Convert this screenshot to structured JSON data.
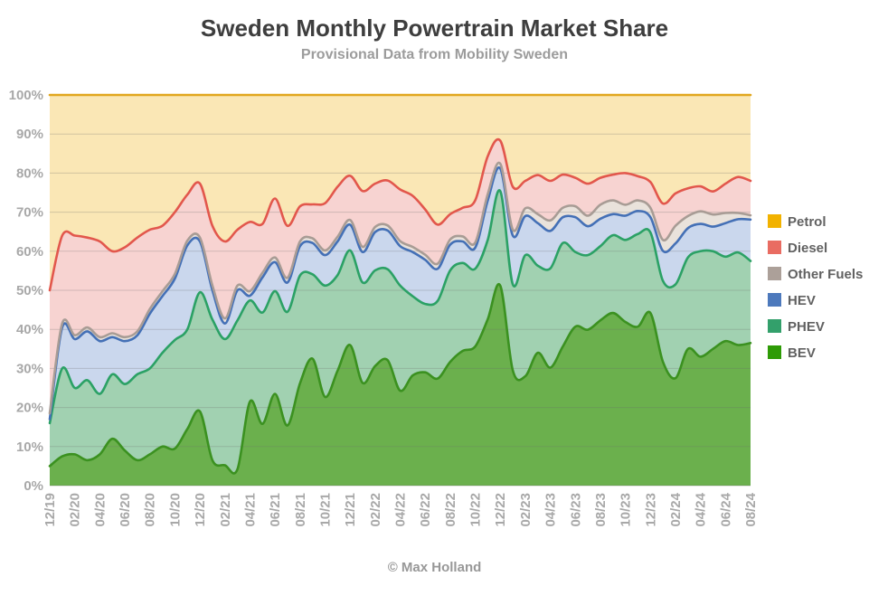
{
  "header": {
    "title": "Sweden Monthly Powertrain Market Share",
    "subtitle": "Provisional Data from Mobility Sweden"
  },
  "footer": {
    "credit": "© Max Holland"
  },
  "chart_data": {
    "type": "area",
    "stacked": true,
    "unit": "percent",
    "title": "Sweden Monthly Powertrain Market Share",
    "subtitle": "Provisional Data from Mobility Sweden",
    "ylim": [
      0,
      100
    ],
    "grid": "horizontal",
    "legend_position": "right",
    "y_ticks": [
      "0%",
      "10%",
      "20%",
      "30%",
      "40%",
      "50%",
      "60%",
      "70%",
      "80%",
      "90%",
      "100%"
    ],
    "x_tick_every": 2,
    "x_labels": [
      "12/19",
      "01/20",
      "02/20",
      "03/20",
      "04/20",
      "05/20",
      "06/20",
      "07/20",
      "08/20",
      "09/20",
      "10/20",
      "11/20",
      "12/20",
      "01/21",
      "02/21",
      "03/21",
      "04/21",
      "05/21",
      "06/21",
      "07/21",
      "08/21",
      "09/21",
      "10/21",
      "11/21",
      "12/21",
      "01/22",
      "02/22",
      "03/22",
      "04/22",
      "05/22",
      "06/22",
      "07/22",
      "08/22",
      "09/22",
      "10/22",
      "11/22",
      "12/22",
      "01/23",
      "02/23",
      "03/23",
      "04/23",
      "05/23",
      "06/23",
      "07/23",
      "08/23",
      "09/23",
      "10/23",
      "11/23",
      "12/23",
      "01/24",
      "02/24",
      "03/24",
      "04/24",
      "05/24",
      "06/24",
      "07/24",
      "08/24"
    ],
    "series": [
      {
        "name": "BEV",
        "line": "#3b9120",
        "fill": "#6bb04d",
        "legend": "#2e9b06",
        "values": [
          5,
          7.5,
          8,
          6.5,
          8,
          12,
          9,
          6.5,
          8,
          10,
          9.5,
          14.5,
          19,
          6.5,
          5.2,
          4.2,
          21.5,
          15.8,
          23.5,
          15.4,
          26.2,
          32.5,
          22.7,
          29.4,
          36,
          26.3,
          30.6,
          32.1,
          24.3,
          28.2,
          29,
          27.4,
          31.7,
          34.5,
          35.6,
          42.6,
          51.2,
          29.5,
          28,
          34,
          30.2,
          35.6,
          40.7,
          39.9,
          42.3,
          44.2,
          41.9,
          40.7,
          44.2,
          31.7,
          27.5,
          35,
          33,
          35,
          37,
          36,
          36.5
        ]
      },
      {
        "name": "PHEV",
        "line": "#2ba165",
        "fill": "#a1d1b1",
        "legend": "#33a06b",
        "values": [
          11,
          22.5,
          17,
          20.5,
          15.5,
          16.5,
          17,
          22,
          22,
          24,
          27.8,
          25.5,
          30.5,
          36,
          32.3,
          38.1,
          25.9,
          28.5,
          26.3,
          29.1,
          27.6,
          21.6,
          28.5,
          24.5,
          24.2,
          25.7,
          24.5,
          23.3,
          26.9,
          20.3,
          17.5,
          19.9,
          23.4,
          22.5,
          19.9,
          20.3,
          24.2,
          22,
          31,
          22.3,
          25.4,
          26.5,
          19.1,
          19.1,
          19,
          19.9,
          21,
          23.7,
          20.6,
          20.7,
          24,
          23.4,
          27,
          25,
          21.6,
          23.7,
          21
        ]
      },
      {
        "name": "HEV",
        "line": "#4470b6",
        "fill": "#cad7ed",
        "legend": "#4d79bc",
        "values": [
          1,
          10.5,
          12.5,
          12.5,
          13.5,
          9.5,
          11,
          10,
          14,
          14.5,
          15.7,
          21.5,
          13,
          7.5,
          4,
          7.7,
          1.2,
          9,
          7.4,
          7.5,
          7.5,
          8,
          7.8,
          8.6,
          6.6,
          7.8,
          9.8,
          9.9,
          10.1,
          11.3,
          11.3,
          8.2,
          6.6,
          5.5,
          5.4,
          10.1,
          5.8,
          12.5,
          10,
          10.9,
          9.6,
          6.6,
          8.9,
          7.4,
          7,
          5.4,
          6.2,
          5.9,
          3.9,
          7.7,
          10.5,
          7.5,
          7,
          6.3,
          8.6,
          8.5,
          10.6
        ]
      },
      {
        "name": "Other Fuels",
        "line": "#a89c95",
        "fill": "#e9e2db",
        "legend": "#aca099",
        "values": [
          1.5,
          1,
          1,
          1,
          1,
          1,
          1,
          1,
          1.2,
          1.2,
          1.2,
          1.2,
          1,
          1.2,
          1.3,
          1.2,
          1.2,
          1.2,
          1.2,
          1.2,
          1.2,
          1.2,
          1.2,
          1.2,
          1.2,
          1.3,
          1.3,
          1.3,
          1.3,
          1.3,
          1.3,
          1.3,
          1.3,
          1.3,
          1.3,
          1.6,
          1.2,
          1.5,
          2,
          2.3,
          2.7,
          2.4,
          2.8,
          2.7,
          3.6,
          3.5,
          2.8,
          2.7,
          2.4,
          2.8,
          4.5,
          3.1,
          3.2,
          3.1,
          2.6,
          1.6,
          1.1
        ]
      },
      {
        "name": "Diesel",
        "line": "#e2574c",
        "fill": "#f7d3d1",
        "legend": "#e96c62",
        "values": [
          31.5,
          22.5,
          25.5,
          23,
          24.5,
          21,
          23,
          24,
          20.3,
          16.8,
          15.8,
          11.8,
          13.8,
          15.3,
          19.7,
          14.3,
          17.7,
          12.5,
          15.1,
          13.3,
          9,
          8.7,
          12.1,
          12.8,
          11.3,
          14.3,
          11.1,
          11.5,
          13.2,
          13.1,
          11.6,
          10,
          6.5,
          7.3,
          10.8,
          9.7,
          5.9,
          11,
          7,
          10,
          10.1,
          8.5,
          7.3,
          8.2,
          6.9,
          6.6,
          8.1,
          6.2,
          6.6,
          9.3,
          8.3,
          7.1,
          6.4,
          5.9,
          7.5,
          9.2,
          8.8
        ]
      },
      {
        "name": "Petrol",
        "line": "#e1a71e",
        "fill": "#fae7b5",
        "legend": "#f2b200",
        "values": [
          50,
          36,
          36,
          36.5,
          37.5,
          40,
          39,
          36.5,
          34.5,
          33.5,
          30,
          25.5,
          22.7,
          33.5,
          37.5,
          34.5,
          32.5,
          33,
          26.5,
          33.5,
          28.5,
          28,
          27.7,
          23.5,
          20.7,
          24.6,
          22.7,
          21.9,
          24.2,
          25.8,
          29.3,
          33.2,
          30.5,
          28.9,
          27,
          15.7,
          11.7,
          23.5,
          22,
          20.5,
          22,
          20.4,
          21.2,
          22.7,
          21.2,
          20.4,
          20,
          20.8,
          22.3,
          27.8,
          25.2,
          23.9,
          23.4,
          24.7,
          22.7,
          21,
          22
        ]
      }
    ]
  }
}
